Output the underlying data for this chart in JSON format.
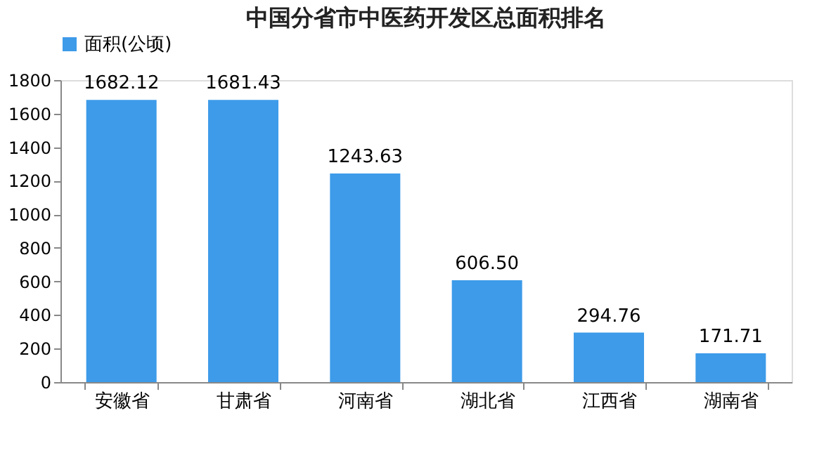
{
  "chart_data": {
    "type": "bar",
    "title": "中国分省市中医药开发区总面积排名",
    "categories": [
      "安徽省",
      "甘肃省",
      "河南省",
      "湖北省",
      "江西省",
      "湖南省"
    ],
    "series": [
      {
        "name": "面积(公顷)",
        "color": "#3d9be9",
        "values": [
          1682.12,
          1681.43,
          1243.63,
          606.5,
          294.76,
          171.71
        ]
      }
    ],
    "value_labels": [
      "1682.12",
      "1681.43",
      "1243.63",
      "606.50",
      "294.76",
      "171.71"
    ],
    "ylim": [
      0,
      1800
    ],
    "yticks": [
      0,
      200,
      400,
      600,
      800,
      1000,
      1200,
      1400,
      1600,
      1800
    ],
    "grid": false,
    "legend": "top"
  }
}
